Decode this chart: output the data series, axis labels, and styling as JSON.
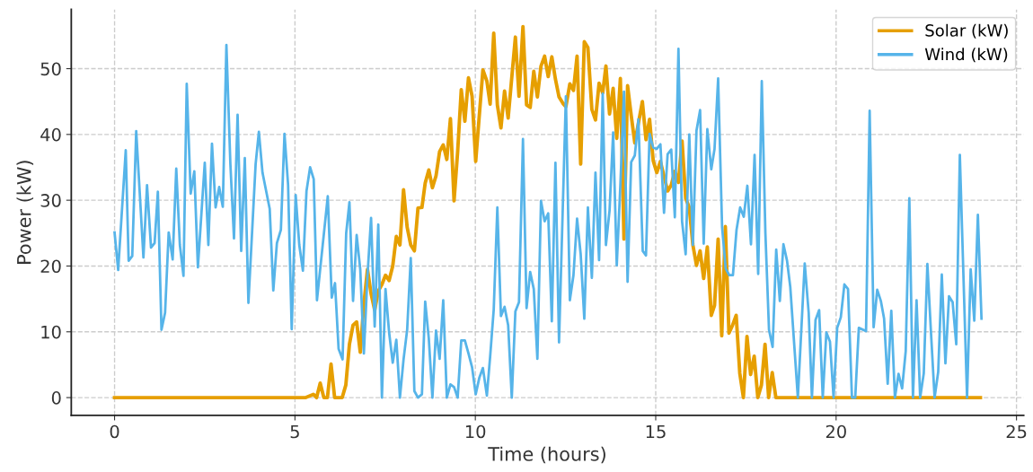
{
  "chart_data": {
    "type": "line",
    "xlabel": "Time (hours)",
    "ylabel": "Power (kW)",
    "xlim": [
      -1.2,
      25.2
    ],
    "ylim": [
      -2.7,
      59
    ],
    "xticks": [
      0,
      5,
      10,
      15,
      20,
      25
    ],
    "yticks": [
      0,
      10,
      20,
      30,
      40,
      50
    ],
    "grid": true,
    "legend": "top right",
    "line_style": "solid",
    "marker": "none",
    "series": [
      {
        "name": "Solar (kW)",
        "color": "#e69f00",
        "x": [
          0,
          5.3,
          5.51,
          5.6,
          5.7,
          5.8,
          5.9,
          6.0,
          6.1,
          6.31,
          6.41,
          6.51,
          6.61,
          6.71,
          6.81,
          6.91,
          7.01,
          7.11,
          7.21,
          7.31,
          7.41,
          7.51,
          7.61,
          7.71,
          7.81,
          7.91,
          8.01,
          8.11,
          8.21,
          8.31,
          8.41,
          8.52,
          8.61,
          8.71,
          8.81,
          8.91,
          9.01,
          9.11,
          9.21,
          9.31,
          9.41,
          9.51,
          9.61,
          9.71,
          9.81,
          9.91,
          10.01,
          10.11,
          10.21,
          10.32,
          10.41,
          10.51,
          10.61,
          10.71,
          10.81,
          10.91,
          11.11,
          11.21,
          11.32,
          11.42,
          11.52,
          11.62,
          11.72,
          11.82,
          11.92,
          12.02,
          12.12,
          12.22,
          12.32,
          12.43,
          12.51,
          12.62,
          12.72,
          12.82,
          12.92,
          13.02,
          13.12,
          13.23,
          13.33,
          13.43,
          13.53,
          13.62,
          13.72,
          13.82,
          13.92,
          14.02,
          14.12,
          14.22,
          14.32,
          14.42,
          14.52,
          14.63,
          14.73,
          14.83,
          14.93,
          15.03,
          15.13,
          15.33,
          15.43,
          15.53,
          15.63,
          15.73,
          15.83,
          15.93,
          16.03,
          16.13,
          16.23,
          16.33,
          16.43,
          16.54,
          16.63,
          16.73,
          16.83,
          16.93,
          17.03,
          17.13,
          17.23,
          17.33,
          17.43,
          17.53,
          17.63,
          17.73,
          17.83,
          17.93,
          18.03,
          18.13,
          18.23,
          18.33,
          24.0
        ],
        "values": [
          0,
          0,
          0.5,
          0,
          2.2,
          0,
          0,
          5.1,
          0,
          0,
          1.9,
          8.1,
          11.0,
          11.5,
          6.9,
          14.2,
          19.5,
          15.8,
          13.3,
          16.2,
          17.2,
          18.6,
          17.8,
          20.0,
          24.5,
          23.2,
          31.6,
          25.9,
          23.2,
          22.3,
          28.8,
          28.9,
          32.6,
          34.6,
          31.9,
          33.7,
          37.4,
          38.4,
          36.2,
          42.4,
          29.9,
          37.4,
          46.8,
          42.0,
          48.6,
          45.8,
          35.9,
          42.9,
          49.8,
          48.1,
          44.6,
          55.4,
          44.5,
          41.0,
          46.6,
          42.5,
          54.8,
          45.8,
          56.4,
          44.5,
          44.1,
          49.6,
          45.7,
          50.4,
          51.9,
          48.8,
          51.8,
          48.4,
          45.7,
          44.7,
          44.2,
          47.7,
          46.7,
          51.9,
          35.5,
          54.1,
          53.2,
          43.8,
          42.2,
          47.8,
          46.3,
          50.4,
          43.1,
          47.0,
          39.4,
          48.5,
          24.1,
          47.4,
          42.9,
          38.7,
          41.7,
          45.0,
          39.2,
          42.3,
          36.0,
          34.2,
          35.9,
          31.4,
          32.3,
          34.4,
          32.7,
          39.0,
          30.3,
          28.9,
          23.2,
          20.1,
          22.3,
          18.1,
          22.9,
          12.5,
          14.0,
          24.1,
          9.4,
          26.0,
          9.8,
          11.0,
          12.5,
          3.7,
          0,
          9.3,
          3.5,
          6.3,
          0,
          1.9,
          8.1,
          0,
          3.8,
          0,
          0
        ]
      },
      {
        "name": "Wind (kW)",
        "color": "#56b4e9",
        "x": [
          0,
          0.1,
          0.31,
          0.39,
          0.49,
          0.6,
          0.8,
          0.9,
          1.01,
          1.11,
          1.2,
          1.3,
          1.4,
          1.5,
          1.61,
          1.71,
          1.81,
          1.91,
          2.0,
          2.11,
          2.21,
          2.31,
          2.5,
          2.6,
          2.7,
          2.8,
          2.9,
          3.0,
          3.1,
          3.21,
          3.31,
          3.41,
          3.51,
          3.61,
          3.71,
          3.91,
          4.0,
          4.1,
          4.3,
          4.4,
          4.5,
          4.61,
          4.71,
          4.81,
          4.91,
          5.02,
          5.12,
          5.22,
          5.32,
          5.42,
          5.52,
          5.61,
          5.91,
          6.02,
          6.11,
          6.21,
          6.32,
          6.42,
          6.51,
          6.61,
          6.71,
          6.81,
          6.91,
          7.01,
          7.11,
          7.21,
          7.31,
          7.41,
          7.51,
          7.61,
          7.71,
          7.81,
          7.91,
          8.01,
          8.11,
          8.21,
          8.31,
          8.41,
          8.52,
          8.61,
          8.71,
          8.81,
          8.91,
          9.01,
          9.11,
          9.21,
          9.31,
          9.41,
          9.51,
          9.61,
          9.71,
          9.81,
          9.91,
          10.01,
          10.11,
          10.21,
          10.32,
          10.41,
          10.51,
          10.61,
          10.71,
          10.81,
          10.91,
          11.01,
          11.11,
          11.21,
          11.32,
          11.42,
          11.52,
          11.62,
          11.72,
          11.82,
          11.92,
          12.02,
          12.12,
          12.22,
          12.32,
          12.51,
          12.62,
          12.72,
          12.82,
          12.92,
          13.02,
          13.12,
          13.23,
          13.33,
          13.43,
          13.53,
          13.62,
          13.72,
          13.82,
          13.92,
          14.02,
          14.12,
          14.22,
          14.32,
          14.42,
          14.52,
          14.64,
          14.73,
          14.83,
          14.93,
          15.03,
          15.13,
          15.23,
          15.33,
          15.43,
          15.53,
          15.63,
          15.73,
          15.83,
          15.93,
          16.03,
          16.13,
          16.23,
          16.33,
          16.43,
          16.54,
          16.63,
          16.73,
          16.84,
          16.94,
          17.04,
          17.14,
          17.24,
          17.34,
          17.44,
          17.54,
          17.64,
          17.74,
          17.84,
          17.94,
          18.04,
          18.14,
          18.24,
          18.34,
          18.44,
          18.54,
          18.64,
          18.73,
          18.94,
          19.13,
          19.24,
          19.33,
          19.43,
          19.53,
          19.63,
          19.73,
          19.83,
          19.93,
          20.03,
          20.13,
          20.23,
          20.33,
          20.44,
          20.53,
          20.63,
          20.83,
          20.93,
          21.04,
          21.14,
          21.24,
          21.33,
          21.43,
          21.53,
          21.63,
          21.73,
          21.83,
          21.93,
          22.03,
          22.13,
          22.23,
          22.33,
          22.43,
          22.53,
          22.63,
          22.73,
          22.83,
          22.93,
          23.03,
          23.13,
          23.23,
          23.33,
          23.43,
          23.63,
          23.73,
          23.83,
          23.93,
          24.03
        ],
        "values": [
          25.1,
          19.4,
          37.6,
          20.8,
          21.5,
          40.5,
          21.3,
          32.3,
          22.8,
          23.5,
          31.3,
          10.3,
          12.9,
          25.1,
          21.0,
          34.8,
          23.2,
          18.5,
          47.7,
          31.0,
          34.4,
          19.8,
          35.7,
          23.2,
          38.6,
          28.9,
          32.0,
          29.0,
          53.6,
          35.5,
          24.2,
          43.0,
          22.3,
          36.4,
          14.4,
          35.5,
          40.4,
          34.2,
          28.7,
          16.3,
          23.5,
          25.5,
          40.1,
          32.3,
          10.4,
          30.8,
          23.2,
          19.3,
          31.4,
          35.0,
          33.2,
          14.8,
          30.6,
          15.2,
          17.4,
          7.4,
          5.8,
          25.0,
          29.7,
          14.7,
          24.7,
          19.5,
          6.7,
          18.5,
          27.3,
          10.8,
          26.3,
          0,
          16.5,
          9.9,
          5.3,
          8.8,
          0,
          5.8,
          10.3,
          21.2,
          1.0,
          0,
          0.5,
          14.6,
          9.0,
          0,
          10.2,
          5.9,
          14.8,
          0,
          2.0,
          1.6,
          0,
          8.7,
          8.7,
          6.7,
          4.6,
          0.5,
          3.0,
          4.5,
          0.3,
          6.2,
          13.4,
          28.9,
          12.4,
          13.8,
          11.0,
          0,
          13.1,
          14.5,
          39.3,
          13.6,
          19.1,
          16.5,
          5.9,
          29.9,
          26.8,
          28.0,
          11.6,
          35.7,
          8.4,
          45.8,
          14.8,
          18.6,
          27.2,
          21.8,
          12.0,
          28.9,
          18.2,
          34.2,
          20.9,
          46.2,
          23.2,
          28.4,
          40.3,
          20.1,
          32.3,
          46.5,
          17.6,
          35.8,
          36.8,
          42.3,
          22.3,
          21.6,
          40.1,
          38.0,
          37.8,
          38.5,
          28.1,
          37.0,
          37.7,
          27.4,
          53.0,
          26.8,
          21.8,
          40.0,
          23.2,
          40.6,
          43.7,
          23.4,
          40.8,
          34.7,
          37.8,
          48.5,
          25.9,
          19.6,
          18.6,
          18.6,
          25.5,
          28.9,
          27.5,
          32.2,
          23.3,
          36.9,
          18.8,
          48.1,
          25.0,
          10.3,
          7.7,
          22.5,
          14.7,
          23.3,
          20.8,
          16.8,
          0,
          20.4,
          12.9,
          0,
          11.8,
          13.3,
          0,
          9.9,
          8.5,
          0,
          10.6,
          12.2,
          17.2,
          16.5,
          0,
          0,
          10.6,
          10.1,
          43.6,
          10.7,
          16.4,
          14.7,
          12.0,
          2.1,
          13.2,
          0,
          3.6,
          1.4,
          7.1,
          30.3,
          0,
          14.8,
          0,
          3.7,
          20.3,
          9.9,
          0,
          3.9,
          18.7,
          5.2,
          15.4,
          14.5,
          8.1,
          36.9,
          0,
          19.5,
          11.7,
          27.8,
          12.0
        ]
      }
    ]
  }
}
